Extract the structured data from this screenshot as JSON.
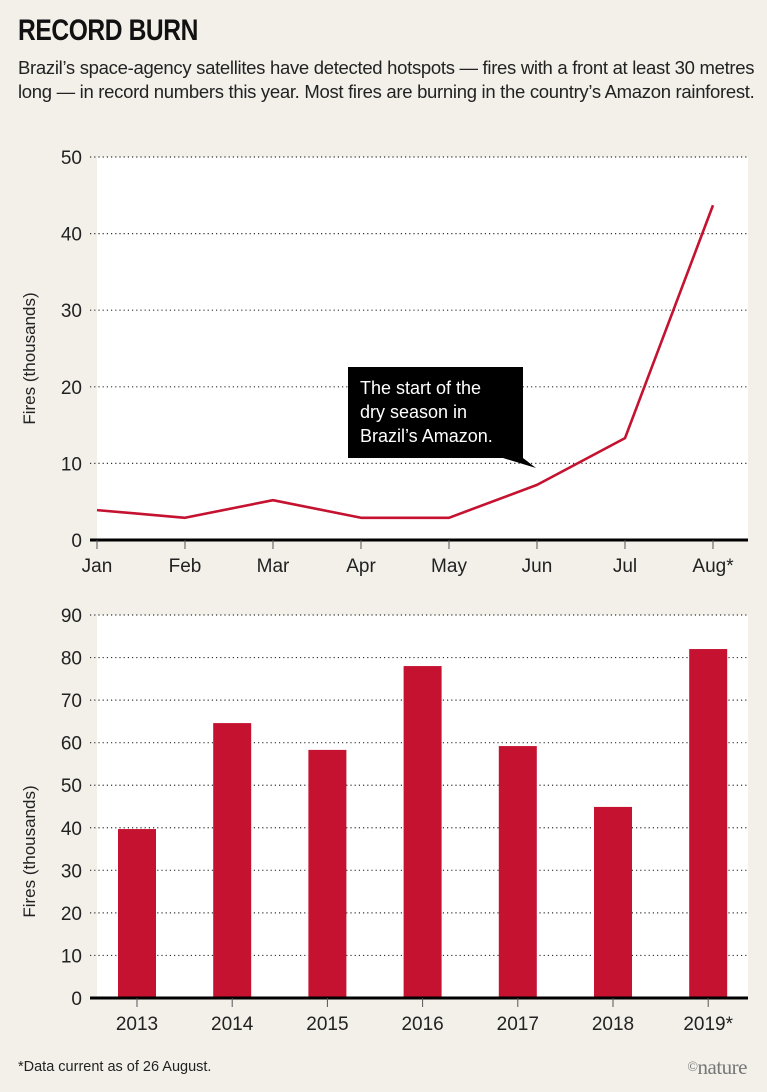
{
  "header": {
    "title": "RECORD BURN",
    "subtitle": "Brazil’s space-agency satellites have detected hotspots — fires with a front at least 30 metres long — in record numbers this year. Most fires are burning in the country’s Amazon rainforest."
  },
  "colors": {
    "series": "#c41230",
    "background": "#f3f0ea",
    "plot_background": "#ffffff",
    "callout": "#000000"
  },
  "chart_data": [
    {
      "type": "line",
      "title": "",
      "xlabel": "",
      "ylabel": "Fires (thousands)",
      "categories": [
        "Jan",
        "Feb",
        "Mar",
        "Apr",
        "May",
        "Jun",
        "Jul",
        "Aug*"
      ],
      "values": [
        3.9,
        2.9,
        5.2,
        2.9,
        2.9,
        7.2,
        13.3,
        43.7
      ],
      "ylim": [
        0,
        50
      ],
      "yticks": [
        0,
        10,
        20,
        30,
        40,
        50
      ],
      "grid": true,
      "annotation": {
        "lines": [
          "The start of the",
          "dry season in",
          "Brazil’s Amazon."
        ],
        "points_to": "Jun"
      }
    },
    {
      "type": "bar",
      "title": "",
      "xlabel": "",
      "ylabel": "Fires (thousands)",
      "categories": [
        "2013",
        "2014",
        "2015",
        "2016",
        "2017",
        "2018",
        "2019*"
      ],
      "values": [
        39.7,
        64.6,
        58.3,
        78.0,
        59.2,
        44.9,
        82.0
      ],
      "ylim": [
        0,
        90
      ],
      "yticks": [
        0,
        10,
        20,
        30,
        40,
        50,
        60,
        70,
        80,
        90
      ],
      "grid": true
    }
  ],
  "footer": {
    "footnote": "*Data current as of 26 August.",
    "credit_symbol": "©",
    "credit": "nature"
  }
}
